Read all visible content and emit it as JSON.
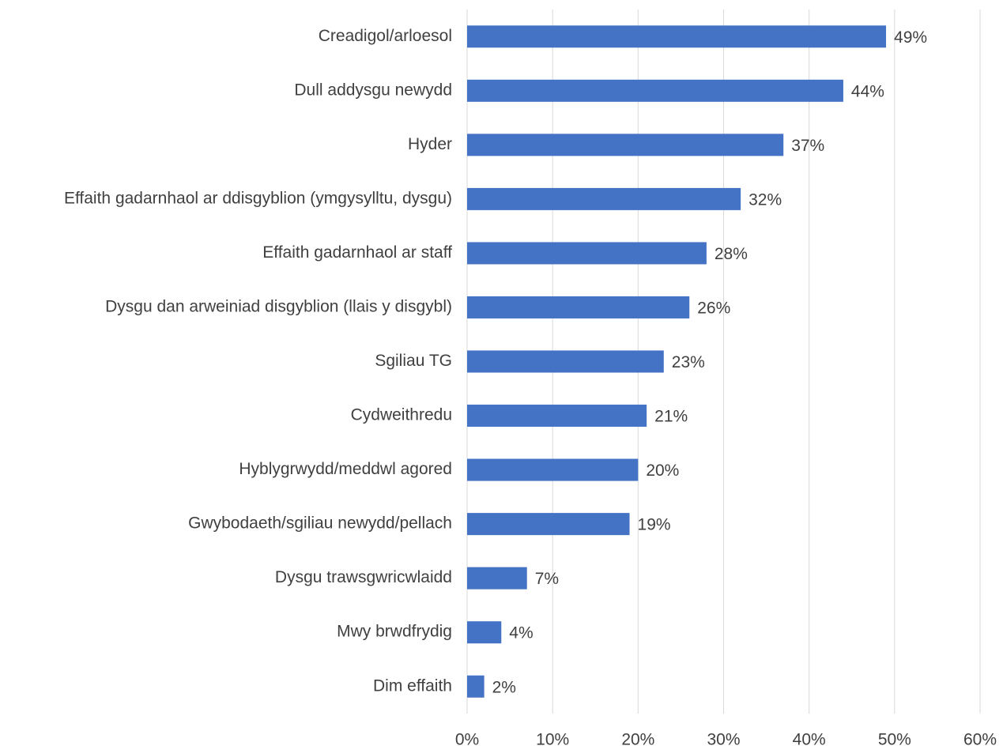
{
  "chart_data": {
    "type": "bar",
    "orientation": "horizontal",
    "categories": [
      "Creadigol/arloesol",
      "Dull addysgu newydd",
      "Hyder",
      "Effaith gadarnhaol ar ddisgyblion (ymgysylltu, dysgu)",
      "Effaith gadarnhaol ar staff",
      "Dysgu dan arweiniad disgyblion (llais y disgybl)",
      "Sgiliau TG",
      "Cydweithredu",
      "Hyblygrwydd/meddwl agored",
      "Gwybodaeth/sgiliau newydd/pellach",
      "Dysgu trawsgwricwlaidd",
      "Mwy brwdfrydig",
      "Dim effaith"
    ],
    "values": [
      49,
      44,
      37,
      32,
      28,
      26,
      23,
      21,
      20,
      19,
      7,
      4,
      2
    ],
    "value_labels": [
      "49%",
      "44%",
      "37%",
      "32%",
      "28%",
      "26%",
      "23%",
      "21%",
      "20%",
      "19%",
      "7%",
      "4%",
      "2%"
    ],
    "color": "#4472c4",
    "xlim": [
      0,
      60
    ],
    "xticks": [
      {
        "value": 0,
        "label": "0%"
      },
      {
        "value": 10,
        "label": "10%"
      },
      {
        "value": 20,
        "label": "20%"
      },
      {
        "value": 30,
        "label": "30%"
      },
      {
        "value": 40,
        "label": "40%"
      },
      {
        "value": 50,
        "label": "50%"
      },
      {
        "value": 60,
        "label": "60%"
      }
    ],
    "grid": true
  }
}
